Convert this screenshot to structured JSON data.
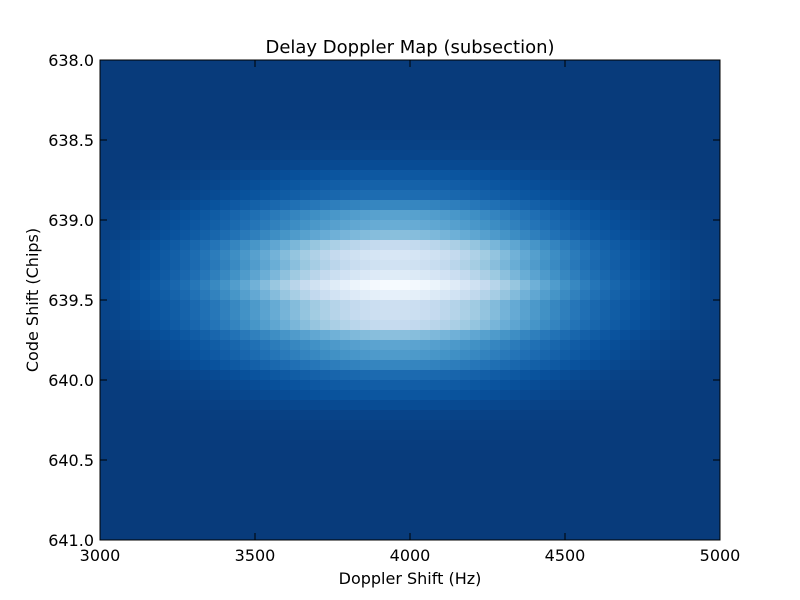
{
  "chart_data": {
    "type": "heatmap",
    "title": "Delay Doppler Map (subsection)",
    "xlabel": "Doppler Shift (Hz)",
    "ylabel": "Code Shift (Chips)",
    "xlim": [
      3000,
      5000
    ],
    "ylim": [
      638.0,
      641.0
    ],
    "y_inverted": true,
    "x_ticks": [
      "3000",
      "3500",
      "4000",
      "4500",
      "5000"
    ],
    "y_ticks": [
      "638.0",
      "638.5",
      "639.0",
      "639.5",
      "640.0",
      "640.5",
      "641.0"
    ],
    "colormap": "blues-reversed",
    "colorscale": [
      "#08306b",
      "#08519c",
      "#2171b5",
      "#4292c6",
      "#6baed6",
      "#9ecae1",
      "#c6dbef",
      "#deebf7",
      "#f7fbff"
    ],
    "peak": {
      "doppler_hz": 3950,
      "code_shift_chips": 639.4,
      "relative_power": 1.0
    },
    "doppler_spread_hz": 380,
    "code_spread_chips": 0.33,
    "background_level": 0.04,
    "grid": false
  }
}
